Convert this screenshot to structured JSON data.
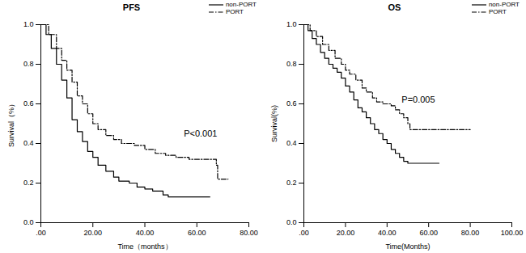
{
  "chart_data": [
    {
      "type": "line",
      "title": "PFS",
      "x_label": "Time（months）",
      "y_label": "Survival（%）",
      "xlim": [
        0,
        80
      ],
      "xticks": [
        {
          "value": 0,
          "label": ".00"
        },
        {
          "value": 20,
          "label": "20.00"
        },
        {
          "value": 40,
          "label": "40.00"
        },
        {
          "value": 60,
          "label": "60.00"
        },
        {
          "value": 80,
          "label": "80.00"
        }
      ],
      "ylim": [
        0,
        1
      ],
      "yticks": [
        {
          "value": 0,
          "label": "0.0"
        },
        {
          "value": 0.2,
          "label": "0.2"
        },
        {
          "value": 0.4,
          "label": "0.4"
        },
        {
          "value": 0.6,
          "label": "0.6"
        },
        {
          "value": 0.8,
          "label": "0.8"
        },
        {
          "value": 1,
          "label": "1.0"
        }
      ],
      "legend": "top-right",
      "series": [
        {
          "name": "non-PORT",
          "color": "#000000",
          "line_style": "solid",
          "x": [
            0,
            2,
            4,
            6,
            8,
            10,
            12,
            14,
            16,
            18,
            20,
            22,
            25,
            28,
            30,
            34,
            37,
            40,
            43,
            47,
            49,
            65
          ],
          "values": [
            1.0,
            0.95,
            0.88,
            0.8,
            0.72,
            0.63,
            0.52,
            0.46,
            0.41,
            0.36,
            0.33,
            0.29,
            0.26,
            0.23,
            0.21,
            0.2,
            0.18,
            0.17,
            0.16,
            0.14,
            0.13,
            0.13
          ]
        },
        {
          "name": "PORT",
          "color": "#000000",
          "line_style": "dashdot",
          "x": [
            0,
            3,
            6,
            8,
            10,
            12,
            14,
            16,
            18,
            20,
            22,
            25,
            28,
            31,
            36,
            40,
            44,
            48,
            52,
            57,
            67,
            67.5,
            68,
            72
          ],
          "values": [
            1.0,
            0.95,
            0.88,
            0.82,
            0.77,
            0.71,
            0.64,
            0.6,
            0.55,
            0.5,
            0.47,
            0.44,
            0.42,
            0.4,
            0.39,
            0.37,
            0.35,
            0.34,
            0.33,
            0.32,
            0.32,
            0.29,
            0.22,
            0.22
          ]
        }
      ],
      "annotations": [
        {
          "text": "P<0.001",
          "x": 55,
          "y": 0.45
        }
      ]
    },
    {
      "type": "line",
      "title": "OS",
      "x_label": "Time(Months)",
      "y_label": "Survival(%)",
      "xlim": [
        0,
        100
      ],
      "xticks": [
        {
          "value": 0,
          "label": ".00"
        },
        {
          "value": 20,
          "label": "20.00"
        },
        {
          "value": 40,
          "label": "40.00"
        },
        {
          "value": 60,
          "label": "60.00"
        },
        {
          "value": 80,
          "label": "80.00"
        },
        {
          "value": 100,
          "label": "100.00"
        }
      ],
      "ylim": [
        0,
        1
      ],
      "yticks": [
        {
          "value": 0,
          "label": "0.0"
        },
        {
          "value": 0.2,
          "label": "0.2"
        },
        {
          "value": 0.4,
          "label": "0.4"
        },
        {
          "value": 0.6,
          "label": "0.6"
        },
        {
          "value": 0.8,
          "label": "0.8"
        },
        {
          "value": 1,
          "label": "1.0"
        }
      ],
      "legend": "top-right",
      "series": [
        {
          "name": "non-PORT",
          "color": "#000000",
          "line_style": "solid",
          "x": [
            0,
            2,
            4,
            6,
            8,
            10,
            12,
            14,
            16,
            18,
            20,
            22,
            24,
            26,
            28,
            30,
            32,
            34,
            36,
            38,
            40,
            42,
            44,
            46,
            48,
            50,
            65
          ],
          "values": [
            1.0,
            0.97,
            0.93,
            0.9,
            0.86,
            0.83,
            0.8,
            0.78,
            0.76,
            0.73,
            0.69,
            0.66,
            0.62,
            0.58,
            0.56,
            0.53,
            0.5,
            0.47,
            0.45,
            0.42,
            0.4,
            0.37,
            0.35,
            0.33,
            0.31,
            0.3,
            0.3
          ]
        },
        {
          "name": "PORT",
          "color": "#000000",
          "line_style": "dashdot",
          "x": [
            0,
            3,
            6,
            9,
            12,
            15,
            18,
            20,
            22,
            25,
            28,
            30,
            33,
            35,
            38,
            42,
            44,
            46,
            48,
            50,
            51,
            80
          ],
          "values": [
            1.0,
            0.97,
            0.94,
            0.9,
            0.87,
            0.83,
            0.8,
            0.77,
            0.75,
            0.72,
            0.68,
            0.66,
            0.63,
            0.61,
            0.6,
            0.59,
            0.57,
            0.55,
            0.53,
            0.5,
            0.47,
            0.47
          ]
        }
      ],
      "annotations": [
        {
          "text": "P=0.005",
          "x": 47,
          "y": 0.62
        }
      ]
    }
  ]
}
